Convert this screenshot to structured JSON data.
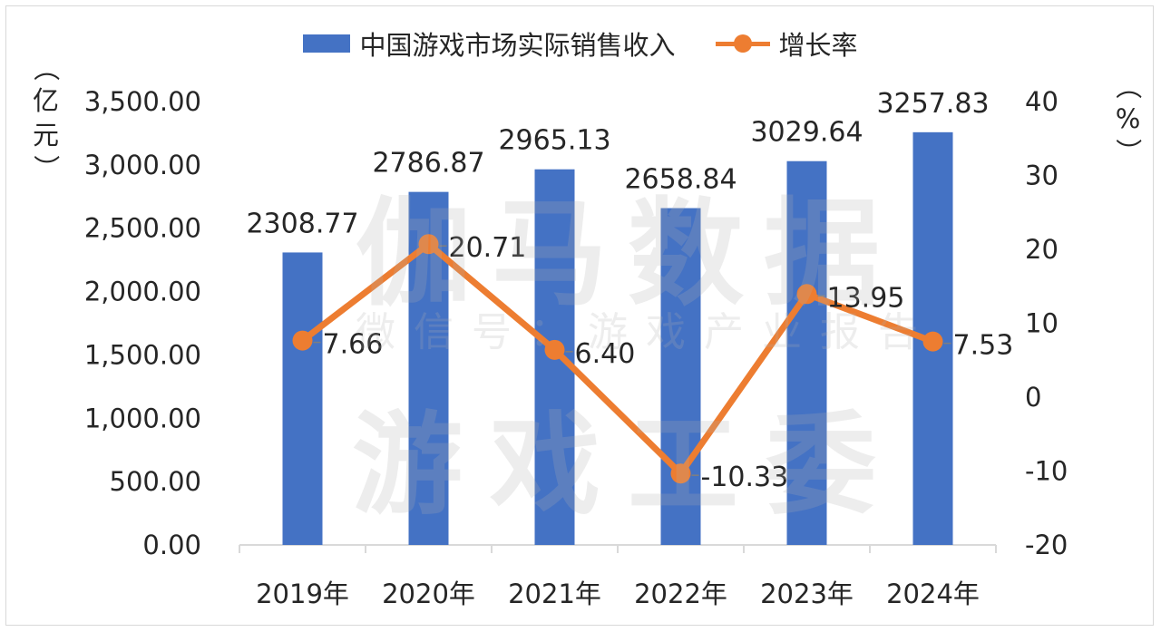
{
  "chart_data": {
    "type": "bar+line",
    "categories": [
      "2019年",
      "2020年",
      "2021年",
      "2022年",
      "2023年",
      "2024年"
    ],
    "series": [
      {
        "name": "中国游戏市场实际销售收入",
        "type": "bar",
        "axis": "left",
        "color": "#4472c4",
        "values": [
          2308.77,
          2786.87,
          2965.13,
          2658.84,
          3029.64,
          3257.83
        ],
        "labels": [
          "2308.77",
          "2786.87",
          "2965.13",
          "2658.84",
          "3029.64",
          "3257.83"
        ]
      },
      {
        "name": "增长率",
        "type": "line",
        "axis": "right",
        "color": "#ed7d31",
        "values": [
          7.66,
          20.71,
          6.4,
          -10.33,
          13.95,
          7.53
        ],
        "labels": [
          "7.66",
          "20.71",
          "6.40",
          "-10.33",
          "13.95",
          "7.53"
        ]
      }
    ],
    "y_left": {
      "title_chars": [
        "（",
        "亿",
        "元",
        "）"
      ],
      "range": [
        0,
        3500
      ],
      "ticks": [
        0,
        500,
        1000,
        1500,
        2000,
        2500,
        3000,
        3500
      ],
      "tick_labels": [
        "0.00",
        "500.00",
        "1,000.00",
        "1,500.00",
        "2,000.00",
        "2,500.00",
        "3,000.00",
        "3,500.00"
      ]
    },
    "y_right": {
      "title_chars": [
        "（",
        "%",
        "）"
      ],
      "range": [
        -20,
        40
      ],
      "ticks": [
        -20,
        -10,
        0,
        10,
        20,
        30,
        40
      ],
      "tick_labels": [
        "-20",
        "-10",
        "0",
        "10",
        "20",
        "30",
        "40"
      ]
    },
    "grid": false,
    "legend_position": "top"
  },
  "watermark": {
    "line1": "伽马数据",
    "line2": "微信号：游戏产业报告",
    "line3": "游戏工委"
  }
}
